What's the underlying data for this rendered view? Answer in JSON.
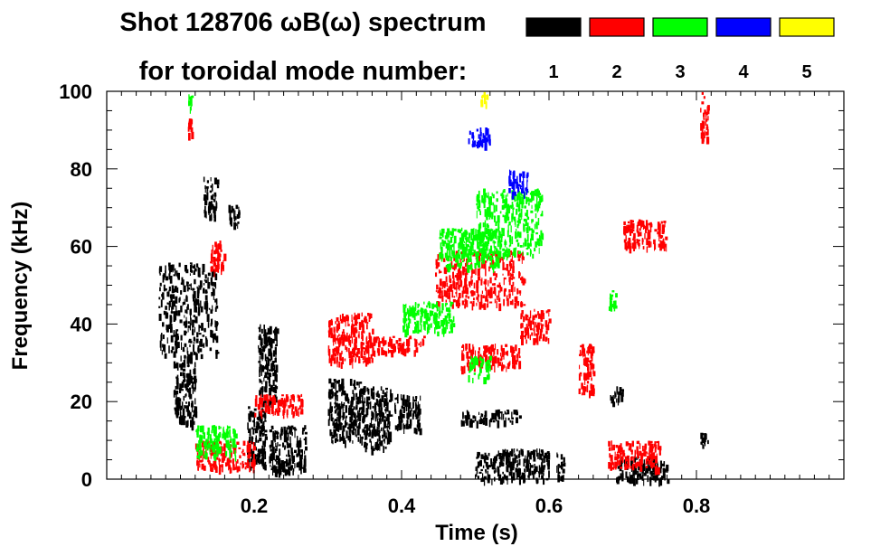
{
  "chart_data": {
    "type": "heatmap",
    "title": "Shot 128706 ωB(ω) spectrum",
    "subtitle": "for toroidal mode number:",
    "xlabel": "Time (s)",
    "ylabel": "Frequency (kHz)",
    "xlim": [
      0.0,
      1.0
    ],
    "ylim": [
      0,
      100
    ],
    "xticks": [
      0.2,
      0.4,
      0.6,
      0.8
    ],
    "xtick_labels": [
      "0.2",
      "0.4",
      "0.6",
      "0.8"
    ],
    "yticks": [
      0,
      20,
      40,
      60,
      80,
      100
    ],
    "ytick_labels": [
      "0",
      "20",
      "40",
      "60",
      "80",
      "100"
    ],
    "legend": [
      {
        "label": "1",
        "color": "#000000"
      },
      {
        "label": "2",
        "color": "#ff0000"
      },
      {
        "label": "3",
        "color": "#00ff00"
      },
      {
        "label": "4",
        "color": "#0000ff"
      },
      {
        "label": "5",
        "color": "#ffff00"
      }
    ],
    "series": [
      {
        "name": "n=1",
        "color": "#000000",
        "regions": [
          {
            "t": [
              0.07,
              0.15
            ],
            "f": [
              32,
              56
            ]
          },
          {
            "t": [
              0.09,
              0.12
            ],
            "f": [
              14,
              32
            ]
          },
          {
            "t": [
              0.13,
              0.15
            ],
            "f": [
              68,
              78
            ]
          },
          {
            "t": [
              0.165,
              0.18
            ],
            "f": [
              66,
              71
            ]
          },
          {
            "t": [
              0.19,
              0.215
            ],
            "f": [
              3,
              19
            ]
          },
          {
            "t": [
              0.22,
              0.27
            ],
            "f": [
              2,
              14
            ]
          },
          {
            "t": [
              0.205,
              0.23
            ],
            "f": [
              20,
              40
            ]
          },
          {
            "t": [
              0.3,
              0.345
            ],
            "f": [
              10,
              26
            ]
          },
          {
            "t": [
              0.345,
              0.385
            ],
            "f": [
              8,
              24
            ]
          },
          {
            "t": [
              0.39,
              0.425
            ],
            "f": [
              13,
              22
            ]
          },
          {
            "t": [
              0.48,
              0.56
            ],
            "f": [
              15,
              18
            ]
          },
          {
            "t": [
              0.5,
              0.6
            ],
            "f": [
              0,
              8
            ]
          },
          {
            "t": [
              0.61,
              0.62
            ],
            "f": [
              0,
              7
            ]
          },
          {
            "t": [
              0.68,
              0.7
            ],
            "f": [
              20,
              24
            ]
          },
          {
            "t": [
              0.69,
              0.76
            ],
            "f": [
              0,
              6
            ]
          },
          {
            "t": [
              0.805,
              0.815
            ],
            "f": [
              8,
              12
            ]
          }
        ]
      },
      {
        "name": "n=2",
        "color": "#ff0000",
        "regions": [
          {
            "t": [
              0.11,
              0.115
            ],
            "f": [
              89,
              93
            ]
          },
          {
            "t": [
              0.14,
              0.16
            ],
            "f": [
              54,
              62
            ]
          },
          {
            "t": [
              0.12,
              0.2
            ],
            "f": [
              3,
              10
            ]
          },
          {
            "t": [
              0.2,
              0.265
            ],
            "f": [
              17,
              22
            ]
          },
          {
            "t": [
              0.3,
              0.36
            ],
            "f": [
              30,
              43
            ]
          },
          {
            "t": [
              0.36,
              0.43
            ],
            "f": [
              33,
              37
            ]
          },
          {
            "t": [
              0.445,
              0.565
            ],
            "f": [
              45,
              59
            ]
          },
          {
            "t": [
              0.56,
              0.6
            ],
            "f": [
              36,
              44
            ]
          },
          {
            "t": [
              0.48,
              0.56
            ],
            "f": [
              29,
              35
            ]
          },
          {
            "t": [
              0.64,
              0.66
            ],
            "f": [
              22,
              35
            ]
          },
          {
            "t": [
              0.68,
              0.75
            ],
            "f": [
              3,
              10
            ]
          },
          {
            "t": [
              0.7,
              0.76
            ],
            "f": [
              60,
              67
            ]
          },
          {
            "t": [
              0.805,
              0.815
            ],
            "f": [
              88,
              100
            ]
          }
        ]
      },
      {
        "name": "n=3",
        "color": "#00ff00",
        "regions": [
          {
            "t": [
              0.11,
              0.115
            ],
            "f": [
              96,
              100
            ]
          },
          {
            "t": [
              0.12,
              0.175
            ],
            "f": [
              6,
              14
            ]
          },
          {
            "t": [
              0.45,
              0.53
            ],
            "f": [
              55,
              65
            ]
          },
          {
            "t": [
              0.5,
              0.59
            ],
            "f": [
              58,
              75
            ]
          },
          {
            "t": [
              0.4,
              0.47
            ],
            "f": [
              38,
              46
            ]
          },
          {
            "t": [
              0.49,
              0.52
            ],
            "f": [
              26,
              32
            ]
          },
          {
            "t": [
              0.68,
              0.69
            ],
            "f": [
              44,
              49
            ]
          }
        ]
      },
      {
        "name": "n=4",
        "color": "#0000ff",
        "regions": [
          {
            "t": [
              0.49,
              0.52
            ],
            "f": [
              86,
              91
            ]
          },
          {
            "t": [
              0.545,
              0.57
            ],
            "f": [
              74,
              80
            ]
          }
        ]
      },
      {
        "name": "n=5",
        "color": "#ffff00",
        "regions": [
          {
            "t": [
              0.505,
              0.515
            ],
            "f": [
              97,
              100
            ]
          }
        ]
      }
    ]
  }
}
